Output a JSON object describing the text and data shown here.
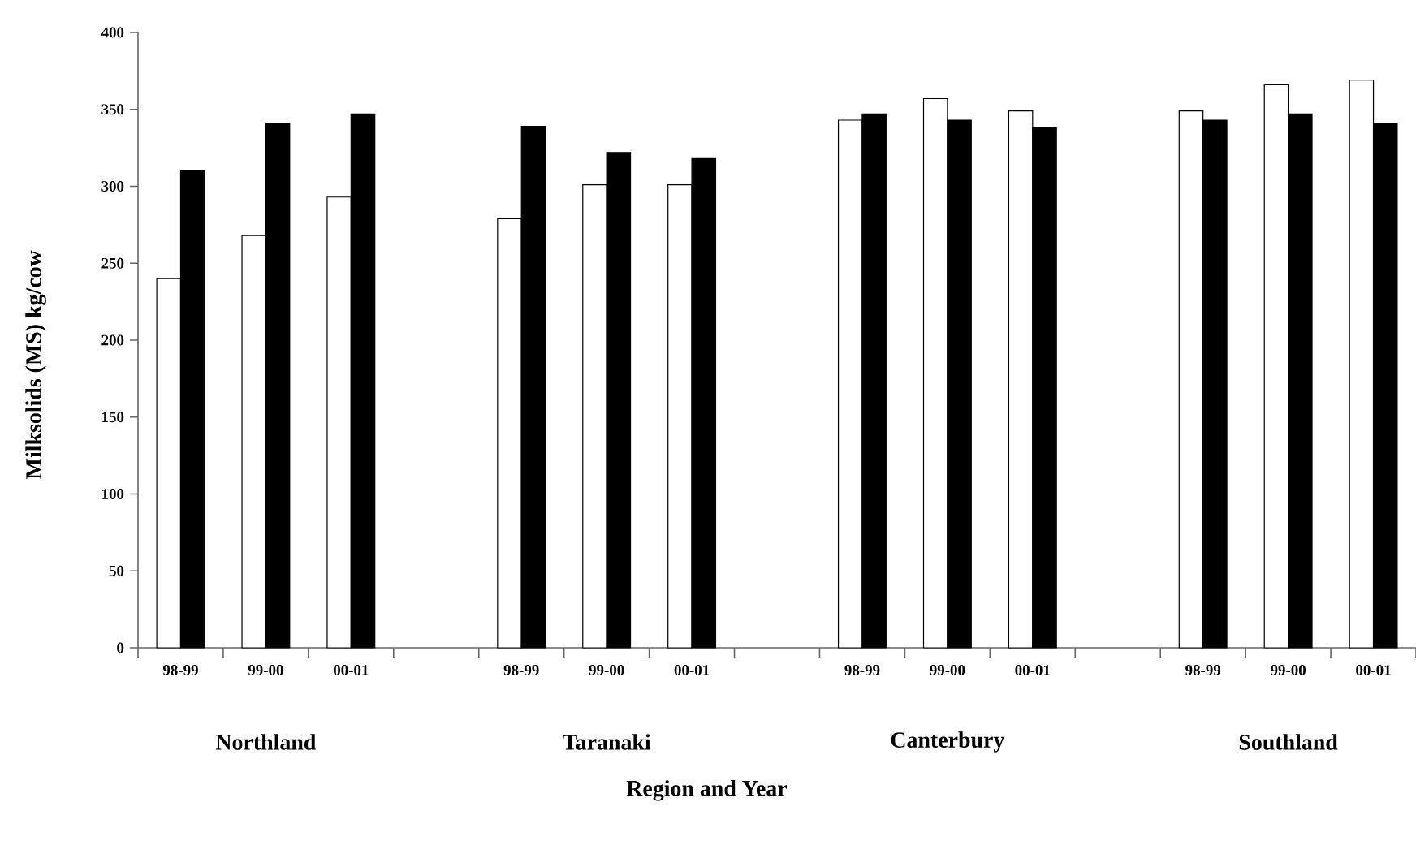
{
  "chart_data": {
    "type": "bar",
    "xlabel": "Region and Year",
    "ylabel": "Milksolids (MS) kg/cow",
    "categories": [
      "98-99",
      "99-00",
      "00-01",
      null,
      "98-99",
      "99-00",
      "00-01",
      null,
      "98-99",
      "99-00",
      "00-01",
      null,
      "98-99",
      "99-00",
      "00-01"
    ],
    "series": [
      {
        "color": "#ffffff",
        "values": [
          240,
          268,
          293,
          null,
          279,
          301,
          301,
          null,
          343,
          357,
          349,
          null,
          349,
          366,
          369
        ]
      },
      {
        "color": "#000000",
        "values": [
          310,
          341,
          347,
          null,
          339,
          322,
          318,
          null,
          347,
          343,
          338,
          null,
          343,
          347,
          341
        ]
      }
    ],
    "annotations": [
      "Northland",
      "Taranaki",
      "Canterbury",
      "Southland"
    ],
    "ylim": [
      0,
      400
    ],
    "yticks": [
      0,
      50,
      100,
      150,
      200,
      250,
      300,
      350,
      400
    ],
    "grid": false
  }
}
